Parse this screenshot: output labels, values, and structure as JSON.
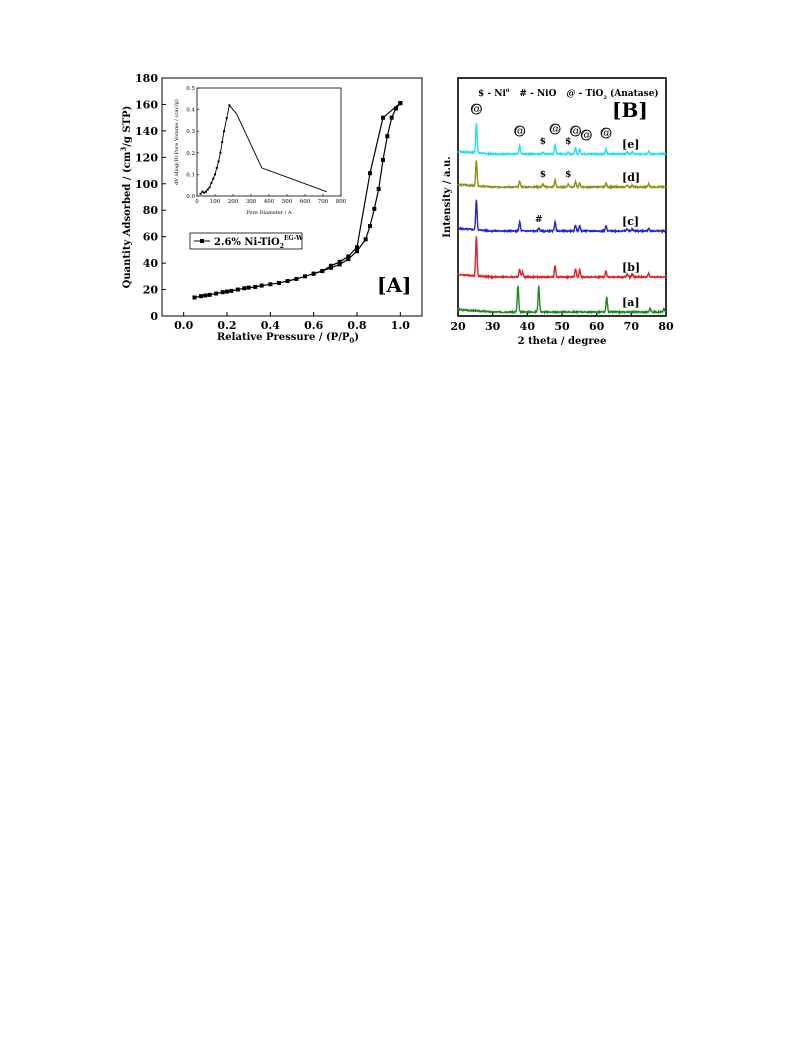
{
  "chart_data": [
    {
      "type": "line",
      "panel_label": "[A]",
      "xlabel": "Relative Pressure / (P/P",
      "xlabel_sub": "0",
      "xlabel_end": ")",
      "ylabel": "Quantity Adsorbed / (cm",
      "ylabel_sup": "3",
      "ylabel_end": "/g STP)",
      "xlim": [
        -0.1,
        1.1
      ],
      "ylim": [
        0,
        180
      ],
      "x_ticks": [
        "0.0",
        "0.2",
        "0.4",
        "0.6",
        "0.8",
        "1.0"
      ],
      "y_ticks": [
        "0",
        "20",
        "40",
        "60",
        "80",
        "100",
        "120",
        "140",
        "160",
        "180"
      ],
      "legend": {
        "text": "2.6% Ni-TiO",
        "sub": "2",
        "sup": "EG-W"
      },
      "series": [
        {
          "role": "adsorption",
          "x": [
            0.05,
            0.08,
            0.1,
            0.12,
            0.15,
            0.18,
            0.2,
            0.22,
            0.25,
            0.28,
            0.3,
            0.33,
            0.36,
            0.4,
            0.44,
            0.48,
            0.52,
            0.56,
            0.6,
            0.64,
            0.68,
            0.72,
            0.76,
            0.8,
            0.84,
            0.86,
            0.88,
            0.9,
            0.92,
            0.94,
            0.96,
            0.98,
            1.0
          ],
          "y": [
            14,
            15,
            15.5,
            16,
            17,
            18,
            18.5,
            19,
            20,
            21,
            21.5,
            22,
            23,
            24,
            25,
            26.5,
            28,
            30,
            32,
            34,
            36.5,
            39,
            43,
            49,
            58,
            68,
            81,
            96,
            118,
            136,
            150,
            157,
            161
          ]
        },
        {
          "role": "desorption",
          "x": [
            1.0,
            0.92,
            0.86,
            0.8,
            0.76,
            0.72,
            0.68,
            0.64,
            0.6
          ],
          "y": [
            161,
            150,
            108,
            52,
            45,
            41,
            38,
            34,
            32
          ]
        }
      ],
      "inset": {
        "xlabel": "Pore Diameter / A",
        "ylabel": "dV /dlog(D) Pore Volume / (cm³/g)",
        "xlim": [
          0,
          800
        ],
        "ylim": [
          0,
          0.5
        ],
        "x_ticks": [
          "0",
          "100",
          "200",
          "300",
          "400",
          "500",
          "600",
          "700",
          "800"
        ],
        "y_ticks": [
          "0.0",
          "0.1",
          "0.2",
          "0.3",
          "0.4",
          "0.5"
        ],
        "x": [
          20,
          30,
          40,
          50,
          60,
          70,
          80,
          90,
          100,
          110,
          120,
          130,
          140,
          150,
          165,
          180,
          220,
          360,
          720
        ],
        "y": [
          0.01,
          0.02,
          0.015,
          0.02,
          0.03,
          0.04,
          0.06,
          0.08,
          0.1,
          0.13,
          0.16,
          0.2,
          0.25,
          0.3,
          0.36,
          0.42,
          0.38,
          0.13,
          0.02
        ]
      }
    },
    {
      "type": "line",
      "panel_label": "[B]",
      "xlabel": "2 theta / degree",
      "ylabel": "Intensity / a.u.",
      "xlim": [
        20,
        80
      ],
      "x_ticks": [
        "20",
        "30",
        "40",
        "50",
        "60",
        "70",
        "80"
      ],
      "legend_line": {
        "ni_symbol": "$ - Ni",
        "ni_sup": "0",
        "nio": "# - NiO",
        "tio2_at": "@",
        "tio2": " - TiO",
        "tio2_sub": "2",
        "tio2_end": " (Anatase)"
      },
      "series": [
        {
          "label": "[a]",
          "color": "#1a8c1a",
          "base": 0,
          "peaks": [
            [
              37.3,
              26
            ],
            [
              43.3,
              26
            ],
            [
              62.9,
              15
            ],
            [
              75.4,
              4
            ],
            [
              79.4,
              3
            ]
          ]
        },
        {
          "label": "[b]",
          "color": "#e02020",
          "base": 1,
          "peaks": [
            [
              25.3,
              40
            ],
            [
              37.8,
              8
            ],
            [
              38.6,
              5
            ],
            [
              48.0,
              11
            ],
            [
              53.9,
              8
            ],
            [
              55.1,
              7
            ],
            [
              62.7,
              6
            ],
            [
              68.8,
              3
            ],
            [
              70.3,
              3
            ],
            [
              75.0,
              4
            ]
          ]
        },
        {
          "label": "[c]",
          "color": "#2020d8",
          "base": 2,
          "peaks": [
            [
              25.3,
              30
            ],
            [
              37.8,
              9
            ],
            [
              43.3,
              3
            ],
            [
              48.0,
              9
            ],
            [
              53.9,
              6
            ],
            [
              55.1,
              5
            ],
            [
              62.7,
              5
            ],
            [
              68.8,
              2
            ],
            [
              70.3,
              2
            ],
            [
              75.0,
              3
            ]
          ]
        },
        {
          "label": "[d]",
          "color": "#8f8f16",
          "base": 3,
          "peaks": [
            [
              25.3,
              26
            ],
            [
              37.8,
              6
            ],
            [
              44.5,
              3
            ],
            [
              48.0,
              7
            ],
            [
              51.8,
              3
            ],
            [
              53.9,
              5
            ],
            [
              55.1,
              4
            ],
            [
              62.7,
              4
            ],
            [
              68.8,
              2
            ],
            [
              70.3,
              2
            ],
            [
              75.0,
              3
            ]
          ]
        },
        {
          "label": "[e]",
          "color": "#20e0e8",
          "base": 4,
          "peaks": [
            [
              25.3,
              30
            ],
            [
              37.8,
              8
            ],
            [
              44.5,
              2
            ],
            [
              48.0,
              9
            ],
            [
              51.8,
              2
            ],
            [
              53.9,
              6
            ],
            [
              55.1,
              5
            ],
            [
              62.7,
              5
            ],
            [
              68.8,
              2
            ],
            [
              70.3,
              2
            ],
            [
              75.0,
              3
            ]
          ]
        }
      ],
      "annotations": [
        {
          "text": "@",
          "x": 25.3,
          "row": 4,
          "dy": -38
        },
        {
          "text": "@",
          "x": 37.8,
          "row": 4,
          "dy": -16
        },
        {
          "text": "$",
          "x": 44.5,
          "row": 4,
          "dy": -6
        },
        {
          "text": "@",
          "x": 48.0,
          "row": 4,
          "dy": -18
        },
        {
          "text": "$",
          "x": 51.8,
          "row": 4,
          "dy": -6
        },
        {
          "text": "@",
          "x": 53.9,
          "row": 4,
          "dy": -16
        },
        {
          "text": "@",
          "x": 57.0,
          "row": 4,
          "dy": -12
        },
        {
          "text": "@",
          "x": 62.7,
          "row": 4,
          "dy": -14
        },
        {
          "text": "$",
          "x": 44.5,
          "row": 3,
          "dy": -6
        },
        {
          "text": "$",
          "x": 51.8,
          "row": 3,
          "dy": -6
        },
        {
          "text": "#",
          "x": 43.3,
          "row": 2,
          "dy": -5
        }
      ]
    }
  ]
}
